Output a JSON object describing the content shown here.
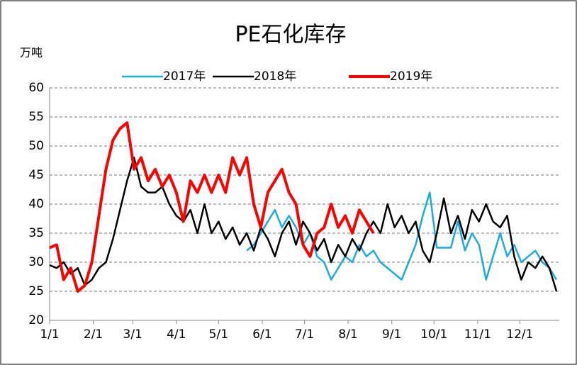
{
  "chart_data": {
    "type": "line",
    "title": "PE石化库存",
    "y_label": "万吨",
    "x": [
      0,
      5,
      10,
      15,
      20,
      25,
      30,
      35,
      40,
      45,
      50,
      55,
      60,
      65,
      70,
      75,
      80,
      85,
      90,
      95,
      100,
      105,
      110,
      115,
      120,
      125,
      130,
      135,
      140,
      145,
      150,
      155,
      160,
      165,
      170,
      175,
      180,
      185,
      190,
      195,
      200,
      205,
      210,
      215,
      220,
      225,
      230,
      235,
      240,
      245,
      250,
      255,
      260,
      265,
      270,
      275,
      280,
      285,
      290,
      295,
      300,
      305,
      310,
      315,
      320,
      325,
      330,
      335,
      340,
      345,
      350,
      355,
      360
    ],
    "series": [
      {
        "name": "2017年",
        "color": "#1fa9e1",
        "values": [
          null,
          null,
          null,
          null,
          null,
          null,
          null,
          null,
          null,
          null,
          null,
          null,
          null,
          null,
          null,
          null,
          null,
          null,
          null,
          null,
          null,
          null,
          null,
          null,
          null,
          null,
          null,
          null,
          32,
          33,
          35,
          37,
          39,
          36,
          38,
          36,
          33,
          35,
          31,
          30,
          27,
          29,
          31,
          30,
          33,
          31,
          32,
          30,
          29,
          28,
          27,
          30,
          33,
          38,
          42,
          32.5,
          32.5,
          32.5,
          37,
          32,
          35,
          33,
          27,
          31,
          35,
          31,
          33,
          30,
          31,
          32,
          30,
          29,
          27
        ]
      },
      {
        "name": "2018年",
        "color": "#000000",
        "values": [
          29.5,
          29,
          30,
          28,
          29,
          26,
          27,
          29,
          30,
          34,
          39,
          44,
          48,
          43,
          42,
          42,
          43,
          40,
          38,
          37,
          39,
          35,
          40,
          35,
          37,
          34,
          36,
          33,
          35,
          32,
          36,
          34,
          31,
          35,
          37,
          33,
          37,
          35,
          32,
          34,
          30,
          33,
          31,
          34,
          32,
          35,
          37,
          35,
          40,
          36,
          38,
          35,
          37,
          32,
          30,
          35,
          41,
          35,
          38,
          34,
          39,
          37,
          40,
          37,
          36,
          38,
          31,
          27,
          30,
          29,
          31,
          29,
          25
        ]
      },
      {
        "name": "2019年",
        "color": "#ff0000",
        "values": [
          32.5,
          33,
          27,
          29,
          25,
          26,
          30,
          38,
          46,
          51,
          53,
          54,
          46,
          48,
          44,
          46,
          43,
          45,
          42,
          37,
          44,
          42,
          45,
          42,
          45,
          42,
          48,
          45,
          48,
          40,
          36,
          42,
          44,
          46,
          42,
          40,
          33,
          31,
          35,
          36,
          40,
          36,
          38,
          35,
          39,
          37,
          35,
          null,
          null,
          null,
          null,
          null,
          null,
          null,
          null,
          null,
          null,
          null,
          null,
          null,
          null,
          null,
          null,
          null,
          null,
          null,
          null,
          null,
          null,
          null,
          null,
          null,
          null
        ]
      }
    ],
    "xlim": [
      0,
      362
    ],
    "xticks": [
      {
        "value": 0,
        "label": "1/1"
      },
      {
        "value": 31,
        "label": "2/1"
      },
      {
        "value": 59,
        "label": "3/1"
      },
      {
        "value": 90,
        "label": "4/1"
      },
      {
        "value": 120,
        "label": "5/1"
      },
      {
        "value": 151,
        "label": "6/1"
      },
      {
        "value": 181,
        "label": "7/1"
      },
      {
        "value": 212,
        "label": "8/1"
      },
      {
        "value": 243,
        "label": "9/1"
      },
      {
        "value": 273,
        "label": "10/1"
      },
      {
        "value": 304,
        "label": "11/1"
      },
      {
        "value": 334,
        "label": "12/1"
      }
    ],
    "ylim": [
      20,
      60
    ],
    "yticks": [
      20,
      25,
      30,
      35,
      40,
      45,
      50,
      55,
      60
    ],
    "grid": true,
    "legend": "top"
  }
}
